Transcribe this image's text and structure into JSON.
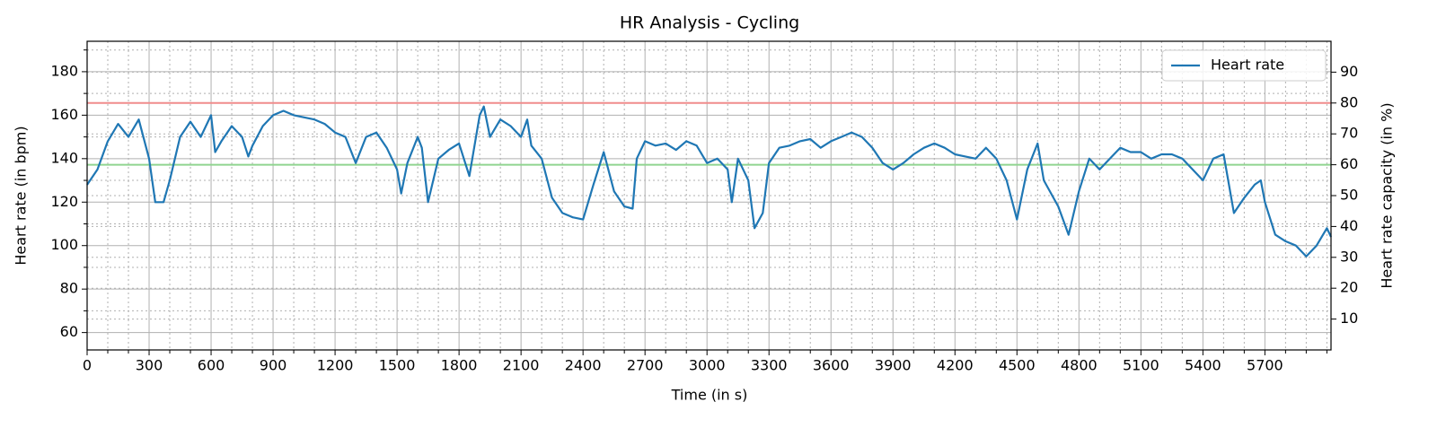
{
  "chart_data": {
    "type": "line",
    "title": "HR Analysis - Cycling",
    "x_label": "Time (in s)",
    "y_label": "Heart rate (in bpm)",
    "y2_label": "Heart rate capacity (in %)",
    "x": [
      0,
      50,
      100,
      150,
      200,
      250,
      300,
      330,
      370,
      400,
      450,
      500,
      550,
      600,
      620,
      650,
      700,
      750,
      780,
      800,
      850,
      900,
      950,
      1000,
      1050,
      1100,
      1150,
      1200,
      1250,
      1300,
      1350,
      1400,
      1450,
      1500,
      1520,
      1550,
      1600,
      1620,
      1650,
      1700,
      1750,
      1800,
      1850,
      1900,
      1920,
      1950,
      2000,
      2050,
      2100,
      2130,
      2150,
      2200,
      2250,
      2300,
      2350,
      2400,
      2450,
      2500,
      2550,
      2600,
      2640,
      2660,
      2700,
      2750,
      2800,
      2850,
      2900,
      2950,
      3000,
      3050,
      3100,
      3120,
      3150,
      3200,
      3230,
      3270,
      3300,
      3350,
      3400,
      3450,
      3500,
      3550,
      3600,
      3650,
      3700,
      3750,
      3800,
      3850,
      3900,
      3950,
      4000,
      4050,
      4100,
      4150,
      4200,
      4250,
      4300,
      4350,
      4400,
      4450,
      4500,
      4550,
      4600,
      4630,
      4700,
      4750,
      4800,
      4850,
      4900,
      4950,
      5000,
      5050,
      5100,
      5150,
      5200,
      5250,
      5300,
      5350,
      5400,
      5450,
      5500,
      5550,
      5600,
      5650,
      5680,
      5700,
      5750,
      5800,
      5850,
      5900,
      5950,
      6000,
      6020
    ],
    "series": [
      {
        "name": "Heart rate",
        "color": "#1f77b4",
        "values": [
          128,
          135,
          148,
          156,
          150,
          158,
          140,
          120,
          120,
          130,
          150,
          157,
          150,
          160,
          143,
          148,
          155,
          150,
          141,
          146,
          155,
          160,
          162,
          160,
          159,
          158,
          156,
          152,
          150,
          138,
          150,
          152,
          145,
          135,
          124,
          138,
          150,
          145,
          120,
          140,
          144,
          147,
          132,
          160,
          164,
          150,
          158,
          155,
          150,
          158,
          146,
          140,
          122,
          115,
          113,
          112,
          128,
          143,
          125,
          118,
          117,
          140,
          148,
          146,
          147,
          144,
          148,
          146,
          138,
          140,
          135,
          120,
          140,
          130,
          108,
          115,
          138,
          145,
          146,
          148,
          149,
          145,
          148,
          150,
          152,
          150,
          145,
          138,
          135,
          138,
          142,
          145,
          147,
          145,
          142,
          141,
          140,
          145,
          140,
          130,
          112,
          135,
          147,
          130,
          118,
          105,
          125,
          140,
          135,
          140,
          145,
          143,
          143,
          140,
          142,
          142,
          140,
          135,
          130,
          140,
          142,
          115,
          122,
          128,
          130,
          120,
          105,
          102,
          100,
          95,
          100,
          108,
          104
        ]
      }
    ],
    "hlines": [
      {
        "value": 165.6,
        "color": "#f08c8c"
      },
      {
        "value": 137.2,
        "color": "#90d490"
      }
    ],
    "xlim": [
      0,
      6020
    ],
    "xticks": [
      0,
      300,
      600,
      900,
      1200,
      1500,
      1800,
      2100,
      2400,
      2700,
      3000,
      3300,
      3600,
      3900,
      4200,
      4500,
      4800,
      5100,
      5400,
      5700
    ],
    "xminor": [
      100,
      200,
      400,
      500,
      700,
      800,
      1000,
      1100,
      1300,
      1400,
      1600,
      1700,
      1900,
      2000,
      2200,
      2300,
      2500,
      2600,
      2800,
      2900,
      3100,
      3200,
      3400,
      3500,
      3700,
      3800,
      4000,
      4100,
      4300,
      4400,
      4600,
      4700,
      4900,
      5000,
      5200,
      5300,
      5500,
      5600,
      5800,
      5900,
      6000
    ],
    "ylim": [
      52,
      194
    ],
    "yticks": [
      60,
      80,
      100,
      120,
      140,
      160,
      180
    ],
    "yminor": [
      70,
      90,
      110,
      130,
      150,
      170,
      190
    ],
    "y2lim": [
      0,
      100
    ],
    "y2ticks": [
      10,
      20,
      30,
      40,
      50,
      60,
      70,
      80,
      90
    ],
    "grid": true,
    "legend": "upper right"
  }
}
